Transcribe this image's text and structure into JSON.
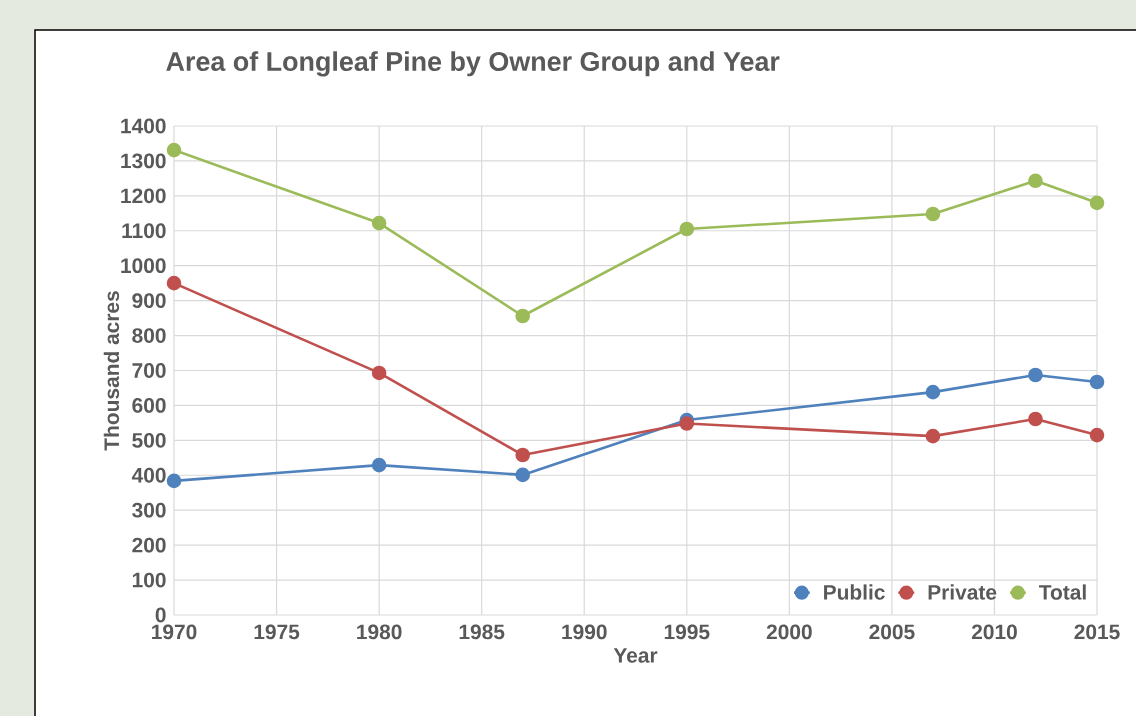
{
  "chart_data": {
    "type": "line",
    "title": "Area of Longleaf Pine by Owner Group and Year",
    "xlabel": "Year",
    "ylabel": "Thousand acres",
    "x": [
      1970,
      1980,
      1987,
      1995,
      2007,
      2012,
      2015
    ],
    "series": [
      {
        "name": "Public",
        "color": "#4f81bd",
        "values": [
          384,
          429,
          401,
          558,
          638,
          687,
          667
        ]
      },
      {
        "name": "Private",
        "color": "#c0504d",
        "values": [
          950,
          693,
          458,
          548,
          512,
          561,
          515
        ]
      },
      {
        "name": "Total",
        "color": "#9bbb59",
        "values": [
          1331,
          1122,
          856,
          1105,
          1148,
          1243,
          1180
        ]
      }
    ],
    "xlim": [
      1970,
      2015
    ],
    "xticks": [
      1970,
      1975,
      1980,
      1985,
      1990,
      1995,
      2000,
      2005,
      2010,
      2015
    ],
    "ylim": [
      0,
      1400
    ],
    "yticks": [
      0,
      100,
      200,
      300,
      400,
      500,
      600,
      700,
      800,
      900,
      1000,
      1100,
      1200,
      1300,
      1400
    ],
    "grid": true,
    "legend": "bottom right",
    "marker": "circle",
    "line_style": "solid"
  }
}
